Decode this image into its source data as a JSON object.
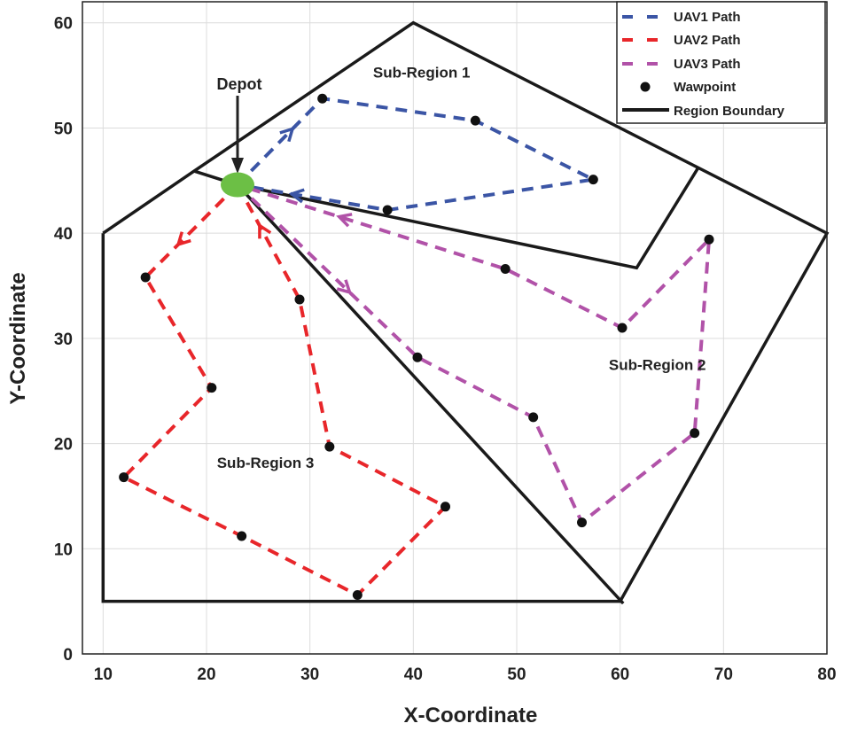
{
  "chart_data": {
    "type": "line",
    "title": "",
    "xlabel": "X-Coordinate",
    "ylabel": "Y-Coordinate",
    "xlim": [
      8,
      80
    ],
    "ylim": [
      0,
      62
    ],
    "xticks": [
      10,
      20,
      30,
      40,
      50,
      60,
      70,
      80
    ],
    "yticks": [
      0,
      10,
      20,
      30,
      40,
      50,
      60
    ],
    "grid": true,
    "legend_position": "top-right",
    "depot": {
      "label": "Depot",
      "x": 23,
      "y": 44.6,
      "color": "#6cbf45"
    },
    "series": [
      {
        "name": "UAV1 Path",
        "color": "#3b55a5",
        "style": "dashed",
        "points": [
          [
            23,
            44.6
          ],
          [
            31.2,
            52.8
          ],
          [
            46.0,
            50.7
          ],
          [
            57.4,
            45.1
          ],
          [
            37.5,
            42.2
          ],
          [
            23,
            44.6
          ]
        ]
      },
      {
        "name": "UAV2 Path",
        "color": "#e8262a",
        "style": "dashed",
        "points": [
          [
            23,
            44.6
          ],
          [
            14.1,
            35.8
          ],
          [
            20.5,
            25.3
          ],
          [
            12.0,
            16.8
          ],
          [
            23.4,
            11.2
          ],
          [
            34.6,
            5.6
          ],
          [
            43.1,
            14.0
          ],
          [
            31.9,
            19.7
          ],
          [
            29.0,
            33.7
          ],
          [
            23,
            44.6
          ]
        ]
      },
      {
        "name": "UAV3 Path",
        "color": "#b152a8",
        "style": "dashed",
        "points": [
          [
            23,
            44.6
          ],
          [
            40.4,
            28.2
          ],
          [
            51.6,
            22.5
          ],
          [
            56.3,
            12.5
          ],
          [
            67.2,
            21.0
          ],
          [
            68.6,
            39.4
          ],
          [
            60.2,
            31.0
          ],
          [
            48.9,
            36.6
          ],
          [
            23,
            44.6
          ]
        ]
      }
    ],
    "waypoint_series": {
      "name": "Wawpoint",
      "color": "#111111"
    },
    "boundary": {
      "name": "Region Boundary",
      "color": "#1a1a1a",
      "outer": [
        [
          10,
          40
        ],
        [
          18.8,
          45.9
        ],
        [
          40,
          60
        ],
        [
          80,
          40
        ],
        [
          60,
          5
        ],
        [
          10,
          5
        ],
        [
          10,
          40
        ]
      ],
      "inner_lines": [
        [
          [
            18.8,
            45.9
          ],
          [
            23,
            44.6
          ]
        ],
        [
          [
            23,
            44.6
          ],
          [
            61.6,
            36.7
          ],
          [
            67.6,
            46.3
          ]
        ],
        [
          [
            23,
            44.6
          ],
          [
            60.3,
            4.8
          ]
        ]
      ]
    },
    "annotations": [
      {
        "text": "Sub-Region 1",
        "x": 40.8,
        "y": 55.3
      },
      {
        "text": "Sub-Region 2",
        "x": 63.6,
        "y": 27.5
      },
      {
        "text": "Sub-Region 3",
        "x": 25.7,
        "y": 18.2
      }
    ]
  }
}
